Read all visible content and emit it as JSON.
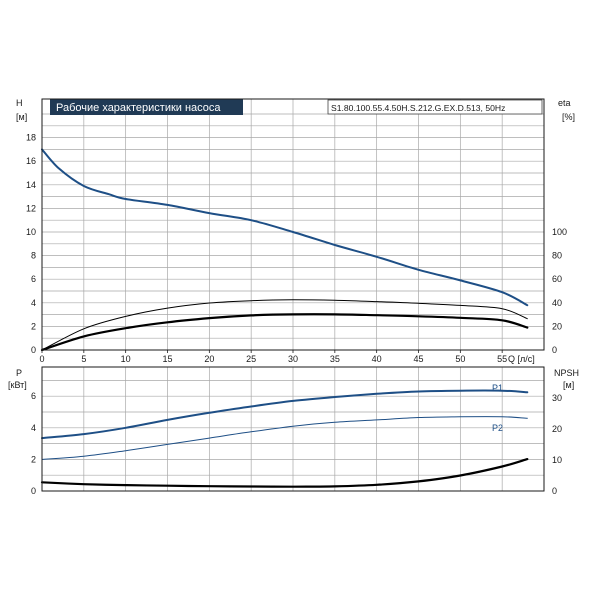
{
  "title": "Рабочие характеристики насоса",
  "model": "S1.80.100.55.4.50H.S.212.G.EX.D.513, 50Hz",
  "colors": {
    "primary": "#1e4f86",
    "black": "#000000",
    "title_bg": "#203a55"
  },
  "top_chart": {
    "left_axis_label": "H",
    "left_axis_unit": "[м]",
    "right_axis_label": "eta",
    "right_axis_unit": "[%]",
    "x_axis_label": "Q [л/с]"
  },
  "bottom_chart": {
    "left_axis_label": "P",
    "left_axis_unit": "[кВт]",
    "right_axis_label": "NPSH",
    "right_axis_unit": "[м]",
    "p1_label": "P1",
    "p2_label": "P2"
  },
  "chart_data": [
    {
      "type": "line",
      "title": "Рабочие характеристики насоса",
      "subtitle": "S1.80.100.55.4.50H.S.212.G.EX.D.513, 50Hz",
      "xlabel": "Q [л/с]",
      "ylabel": "H [м]",
      "y2label": "eta [%]",
      "xlim": [
        0,
        60
      ],
      "ylim": [
        0,
        20
      ],
      "y2lim": [
        0,
        120
      ],
      "xticks": [
        0,
        5,
        10,
        15,
        20,
        25,
        30,
        35,
        40,
        45,
        50,
        55
      ],
      "yticks": [
        0,
        2,
        4,
        6,
        8,
        10,
        12,
        14,
        16,
        18
      ],
      "y2ticks": [
        0,
        20,
        40,
        60,
        80,
        100
      ],
      "grid": true,
      "series": [
        {
          "axis": "left",
          "color": "#1e4f86",
          "width": 2,
          "x": [
            0,
            2,
            5,
            8,
            10,
            15,
            20,
            25,
            30,
            35,
            40,
            45,
            50,
            55,
            58
          ],
          "y": [
            17,
            15.4,
            13.9,
            13.2,
            12.8,
            12.3,
            11.6,
            11.0,
            10.0,
            8.9,
            7.9,
            6.8,
            5.9,
            4.9,
            3.8
          ]
        },
        {
          "axis": "right",
          "color": "#000000",
          "width": 1,
          "x": [
            0,
            5,
            10,
            15,
            20,
            25,
            30,
            35,
            40,
            45,
            50,
            55,
            58
          ],
          "y": [
            0,
            18,
            28.5,
            35.5,
            39.8,
            41.8,
            42.6,
            42.2,
            41.0,
            39.6,
            37.8,
            35.0,
            26.5
          ]
        },
        {
          "axis": "right",
          "color": "#000000",
          "width": 2.2,
          "x": [
            0,
            5,
            10,
            15,
            20,
            25,
            30,
            35,
            40,
            45,
            50,
            55,
            58
          ],
          "y": [
            0,
            11.5,
            18.5,
            23.5,
            27.0,
            29.3,
            30.2,
            30.2,
            29.5,
            28.6,
            27.3,
            25.2,
            19.0
          ]
        }
      ]
    },
    {
      "type": "line",
      "ylabel": "P [кВт]",
      "y2label": "NPSH [м]",
      "xlim": [
        0,
        60
      ],
      "ylim": [
        0,
        8
      ],
      "y2lim": [
        0,
        40
      ],
      "yticks": [
        0,
        2,
        4,
        6
      ],
      "y2ticks": [
        0,
        10,
        20,
        30
      ],
      "grid": true,
      "series": [
        {
          "name": "P1",
          "axis": "left",
          "color": "#1e4f86",
          "width": 2,
          "x": [
            0,
            5,
            10,
            15,
            20,
            25,
            30,
            35,
            40,
            45,
            50,
            55,
            58
          ],
          "y": [
            3.35,
            3.6,
            4.0,
            4.5,
            4.95,
            5.35,
            5.7,
            5.95,
            6.15,
            6.3,
            6.35,
            6.35,
            6.25
          ]
        },
        {
          "name": "P2",
          "axis": "left",
          "color": "#1e4f86",
          "width": 1,
          "x": [
            0,
            5,
            10,
            15,
            20,
            25,
            30,
            35,
            40,
            45,
            50,
            55,
            58
          ],
          "y": [
            2.0,
            2.2,
            2.55,
            2.95,
            3.35,
            3.75,
            4.1,
            4.35,
            4.5,
            4.65,
            4.7,
            4.7,
            4.6
          ]
        },
        {
          "axis": "right",
          "color": "#000000",
          "width": 2.2,
          "x": [
            0,
            5,
            10,
            15,
            20,
            25,
            30,
            35,
            40,
            45,
            50,
            55,
            58
          ],
          "y": [
            2.8,
            2.2,
            1.9,
            1.7,
            1.55,
            1.45,
            1.4,
            1.5,
            2.0,
            3.1,
            5.0,
            7.9,
            10.3
          ]
        }
      ]
    }
  ]
}
